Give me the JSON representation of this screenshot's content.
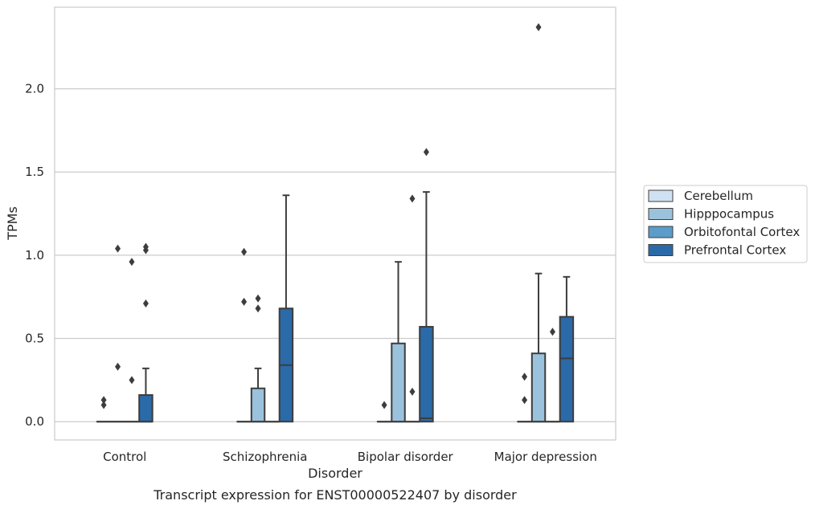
{
  "chart_data": {
    "type": "box",
    "title": "",
    "caption": "Transcript expression for ENST00000522407 by disorder",
    "xlabel": "Disorder",
    "ylabel": "TPMs",
    "categories": [
      "Control",
      "Schizophrenia",
      "Bipolar disorder",
      "Major depression"
    ],
    "ylim": [
      -0.11,
      2.49
    ],
    "yticks": [
      0.0,
      0.5,
      1.0,
      1.5,
      2.0
    ],
    "ytick_labels": [
      "0.0",
      "0.5",
      "1.0",
      "1.5",
      "2.0"
    ],
    "grid": "horizontal",
    "legend_placement": "center-right (outside)",
    "series": [
      {
        "name": "Cerebellum",
        "color": "#d0e1f2",
        "boxes": [
          {
            "q1": 0.0,
            "median": 0.0,
            "q3": 0.0,
            "whisker_low": 0.0,
            "whisker_high": 0.0,
            "outliers": [
              0.1,
              0.13
            ]
          },
          {
            "q1": 0.0,
            "median": 0.0,
            "q3": 0.0,
            "whisker_low": 0.0,
            "whisker_high": 0.0,
            "outliers": [
              0.72,
              1.02
            ]
          },
          {
            "q1": 0.0,
            "median": 0.0,
            "q3": 0.0,
            "whisker_low": 0.0,
            "whisker_high": 0.0,
            "outliers": [
              0.1
            ]
          },
          {
            "q1": 0.0,
            "median": 0.0,
            "q3": 0.0,
            "whisker_low": 0.0,
            "whisker_high": 0.0,
            "outliers": [
              0.13,
              0.27
            ]
          }
        ]
      },
      {
        "name": "Hipppocampus",
        "color": "#9ac2dc",
        "boxes": [
          {
            "q1": 0.0,
            "median": 0.0,
            "q3": 0.0,
            "whisker_low": 0.0,
            "whisker_high": 0.0,
            "outliers": [
              0.33,
              1.04
            ]
          },
          {
            "q1": 0.0,
            "median": 0.0,
            "q3": 0.2,
            "whisker_low": 0.0,
            "whisker_high": 0.32,
            "outliers": [
              0.68,
              0.74
            ]
          },
          {
            "q1": 0.0,
            "median": 0.0,
            "q3": 0.47,
            "whisker_low": 0.0,
            "whisker_high": 0.96,
            "outliers": []
          },
          {
            "q1": 0.0,
            "median": 0.0,
            "q3": 0.41,
            "whisker_low": 0.0,
            "whisker_high": 0.89,
            "outliers": [
              2.37
            ]
          }
        ]
      },
      {
        "name": "Orbitofontal Cortex",
        "color": "#5b9cc9",
        "boxes": [
          {
            "q1": 0.0,
            "median": 0.0,
            "q3": 0.0,
            "whisker_low": 0.0,
            "whisker_high": 0.0,
            "outliers": [
              0.25,
              0.96
            ]
          },
          {
            "q1": 0.0,
            "median": 0.0,
            "q3": 0.0,
            "whisker_low": 0.0,
            "whisker_high": 0.0,
            "outliers": []
          },
          {
            "q1": 0.0,
            "median": 0.0,
            "q3": 0.0,
            "whisker_low": 0.0,
            "whisker_high": 0.0,
            "outliers": [
              0.18,
              1.34
            ]
          },
          {
            "q1": 0.0,
            "median": 0.0,
            "q3": 0.0,
            "whisker_low": 0.0,
            "whisker_high": 0.0,
            "outliers": [
              0.54
            ]
          }
        ]
      },
      {
        "name": "Prefrontal Cortex",
        "color": "#2b6aa8",
        "boxes": [
          {
            "q1": 0.0,
            "median": 0.0,
            "q3": 0.16,
            "whisker_low": 0.0,
            "whisker_high": 0.32,
            "outliers": [
              0.71,
              1.03,
              1.05
            ]
          },
          {
            "q1": 0.0,
            "median": 0.34,
            "q3": 0.68,
            "whisker_low": 0.0,
            "whisker_high": 1.36,
            "outliers": []
          },
          {
            "q1": 0.0,
            "median": 0.02,
            "q3": 0.57,
            "whisker_low": 0.0,
            "whisker_high": 1.38,
            "outliers": [
              1.62
            ]
          },
          {
            "q1": 0.0,
            "median": 0.38,
            "q3": 0.63,
            "whisker_low": 0.0,
            "whisker_high": 0.87,
            "outliers": []
          }
        ]
      }
    ]
  }
}
